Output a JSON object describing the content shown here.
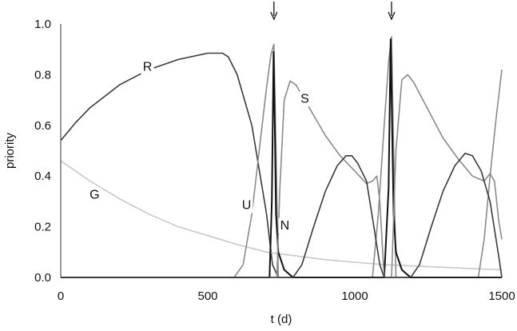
{
  "chart_data": {
    "type": "line",
    "title": "",
    "xlabel": "t (d)",
    "ylabel": "priority",
    "xlim": [
      0,
      1500
    ],
    "ylim": [
      0,
      1.0
    ],
    "x_ticks": [
      0,
      500,
      1000,
      1500
    ],
    "y_ticks": [
      0.0,
      0.2,
      0.4,
      0.6,
      0.8,
      1.0
    ],
    "x_tick_labels": [
      "0",
      "500",
      "1000",
      "1500"
    ],
    "y_tick_labels": [
      "0.0",
      "0.2",
      "0.4",
      "0.6",
      "0.8",
      "1.0"
    ],
    "grid": false,
    "legend": "none",
    "arrows_at_x": [
      725,
      1125
    ],
    "series": [
      {
        "name": "R",
        "color": "#3a3a3a",
        "x": [
          0,
          50,
          100,
          200,
          300,
          400,
          500,
          550,
          570,
          600,
          650,
          700,
          720,
          740,
          1500
        ],
        "y": [
          0.54,
          0.61,
          0.67,
          0.76,
          0.82,
          0.86,
          0.885,
          0.885,
          0.87,
          0.8,
          0.6,
          0.25,
          0.05,
          0.0,
          0.0
        ]
      },
      {
        "name": "G",
        "color": "#c8c8c8",
        "x": [
          0,
          100,
          200,
          300,
          400,
          500,
          600,
          700,
          800,
          900,
          1000,
          1100,
          1200,
          1300,
          1400,
          1500
        ],
        "y": [
          0.46,
          0.38,
          0.31,
          0.25,
          0.2,
          0.165,
          0.13,
          0.1,
          0.085,
          0.07,
          0.06,
          0.05,
          0.045,
          0.04,
          0.035,
          0.03
        ]
      },
      {
        "name": "U",
        "color": "#8a8a8a",
        "x": [
          0,
          590,
          620,
          650,
          680,
          700,
          715,
          725,
          732,
          740,
          1060,
          1080,
          1100,
          1115,
          1125,
          1132,
          1140,
          1420,
          1440,
          1460,
          1480,
          1500
        ],
        "y": [
          0,
          0,
          0.05,
          0.25,
          0.55,
          0.75,
          0.88,
          0.92,
          0.5,
          0,
          0,
          0.25,
          0.6,
          0.85,
          0.95,
          0.5,
          0,
          0,
          0.15,
          0.4,
          0.62,
          0.82
        ]
      },
      {
        "name": "N",
        "color": "#111111",
        "x": [
          0,
          710,
          718,
          724,
          728,
          732,
          740,
          760,
          790,
          1100,
          1115,
          1122,
          1127,
          1132,
          1140,
          1160,
          1190,
          1500
        ],
        "y": [
          0,
          0,
          0.3,
          0.89,
          0.6,
          0.25,
          0.1,
          0.03,
          0,
          0,
          0.35,
          0.94,
          0.6,
          0.25,
          0.1,
          0.03,
          0,
          0
        ]
      },
      {
        "name": "S",
        "color": "#8a8a8a",
        "x": [
          0,
          735,
          745,
          760,
          780,
          800,
          850,
          900,
          950,
          1000,
          1040,
          1060,
          1075,
          1085,
          1100,
          1125,
          1140,
          1160,
          1180,
          1200,
          1250,
          1300,
          1350,
          1400,
          1440,
          1460,
          1475,
          1490,
          1500
        ],
        "y": [
          0,
          0,
          0.35,
          0.7,
          0.775,
          0.76,
          0.66,
          0.56,
          0.48,
          0.42,
          0.37,
          0.38,
          0.4,
          0.3,
          0.0,
          0.0,
          0.5,
          0.78,
          0.8,
          0.77,
          0.66,
          0.55,
          0.47,
          0.4,
          0.38,
          0.41,
          0.38,
          0.22,
          0.15
        ]
      },
      {
        "name": "",
        "color": "#3a3a3a",
        "x": [
          0,
          790,
          820,
          860,
          900,
          940,
          970,
          990,
          1010,
          1040,
          1065,
          1085,
          1100,
          1190,
          1220,
          1260,
          1300,
          1340,
          1375,
          1400,
          1430,
          1460,
          1490,
          1500
        ],
        "y": [
          0,
          0,
          0.05,
          0.2,
          0.34,
          0.44,
          0.48,
          0.48,
          0.45,
          0.38,
          0.2,
          0.05,
          0.0,
          0.0,
          0.05,
          0.2,
          0.34,
          0.44,
          0.49,
          0.48,
          0.42,
          0.3,
          0.08,
          0.0
        ]
      }
    ],
    "series_label_positions": [
      {
        "text": "R",
        "x": 295,
        "y": 0.815
      },
      {
        "text": "G",
        "x": 115,
        "y": 0.31
      },
      {
        "text": "U",
        "x": 632,
        "y": 0.27
      },
      {
        "text": "N",
        "x": 762,
        "y": 0.19
      },
      {
        "text": "S",
        "x": 830,
        "y": 0.69
      }
    ]
  }
}
